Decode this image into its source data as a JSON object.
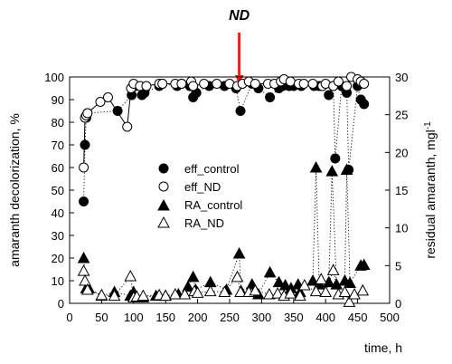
{
  "chart_data": {
    "type": "scatter",
    "annotation": {
      "text": "ND",
      "x": 265
    },
    "xlabel": "time, h",
    "ylabel_left": "amaranth decolorization, %",
    "ylabel_right": "residual amaranth, mgl",
    "ylabel_right_sup": "-1",
    "xlim": [
      0,
      500
    ],
    "ylim_left": [
      0,
      100
    ],
    "ylim_right": [
      0,
      30
    ],
    "x_ticks": [
      0,
      50,
      100,
      150,
      200,
      250,
      300,
      350,
      400,
      450,
      500
    ],
    "y_left_ticks": [
      0,
      10,
      20,
      30,
      40,
      50,
      60,
      70,
      80,
      90,
      100
    ],
    "y_right_ticks": [
      0,
      5,
      10,
      15,
      20,
      25,
      30
    ],
    "legend_position": "center",
    "grid": false,
    "series": [
      {
        "name": "eff_control",
        "axis": "left",
        "marker": "circle",
        "filled": true,
        "connector": "dotted",
        "points": [
          [
            22,
            45
          ],
          [
            24,
            70
          ],
          [
            26,
            82
          ],
          [
            28,
            84
          ],
          [
            75,
            85
          ],
          [
            97,
            92
          ],
          [
            103,
            96
          ],
          [
            113,
            92
          ],
          [
            117,
            93
          ],
          [
            140,
            96
          ],
          [
            145,
            97
          ],
          [
            168,
            96
          ],
          [
            175,
            97
          ],
          [
            188,
            96
          ],
          [
            193,
            91
          ],
          [
            198,
            93
          ],
          [
            218,
            96
          ],
          [
            242,
            96
          ],
          [
            260,
            95
          ],
          [
            267,
            85
          ],
          [
            285,
            97
          ],
          [
            295,
            95
          ],
          [
            313,
            91
          ],
          [
            327,
            95
          ],
          [
            333,
            96
          ],
          [
            343,
            96
          ],
          [
            350,
            96
          ],
          [
            362,
            96
          ],
          [
            382,
            96
          ],
          [
            390,
            96
          ],
          [
            405,
            92
          ],
          [
            412,
            96
          ],
          [
            415,
            64
          ],
          [
            425,
            96
          ],
          [
            433,
            93
          ],
          [
            436,
            59
          ],
          [
            450,
            96
          ],
          [
            455,
            90
          ],
          [
            460,
            88
          ]
        ]
      },
      {
        "name": "eff_ND",
        "axis": "left",
        "marker": "circle",
        "filled": false,
        "connector": "solid",
        "points": [
          [
            22,
            60
          ],
          [
            24,
            82
          ],
          [
            26,
            83
          ],
          [
            28,
            84
          ],
          [
            48,
            89
          ],
          [
            60,
            91
          ],
          [
            90,
            78
          ],
          [
            96,
            95
          ],
          [
            100,
            97
          ],
          [
            110,
            96
          ],
          [
            120,
            96
          ],
          [
            140,
            97
          ],
          [
            145,
            97
          ],
          [
            165,
            97
          ],
          [
            175,
            97
          ],
          [
            190,
            98
          ],
          [
            193,
            96
          ],
          [
            210,
            97
          ],
          [
            230,
            97
          ],
          [
            250,
            97
          ],
          [
            262,
            96
          ],
          [
            270,
            97
          ],
          [
            280,
            98
          ],
          [
            290,
            97
          ],
          [
            310,
            97
          ],
          [
            320,
            97
          ],
          [
            330,
            98
          ],
          [
            335,
            99
          ],
          [
            345,
            98
          ],
          [
            358,
            97
          ],
          [
            366,
            97
          ],
          [
            380,
            97
          ],
          [
            395,
            96
          ],
          [
            400,
            97
          ],
          [
            412,
            96
          ],
          [
            420,
            98
          ],
          [
            433,
            96
          ],
          [
            440,
            100
          ],
          [
            450,
            99
          ],
          [
            455,
            98
          ],
          [
            460,
            97
          ]
        ]
      },
      {
        "name": "RA_control",
        "axis": "right",
        "marker": "triangle",
        "filled": true,
        "connector": "dotted",
        "points": [
          [
            22,
            6
          ],
          [
            26,
            2
          ],
          [
            30,
            2
          ],
          [
            50,
            1
          ],
          [
            70,
            1.5
          ],
          [
            95,
            1
          ],
          [
            100,
            1.5
          ],
          [
            105,
            0.8
          ],
          [
            115,
            0.8
          ],
          [
            135,
            1
          ],
          [
            150,
            1
          ],
          [
            170,
            1.2
          ],
          [
            185,
            2.2
          ],
          [
            193,
            3.5
          ],
          [
            197,
            1.8
          ],
          [
            220,
            2.8
          ],
          [
            245,
            1.8
          ],
          [
            265,
            6.6
          ],
          [
            268,
            1.6
          ],
          [
            285,
            2.5
          ],
          [
            295,
            1.2
          ],
          [
            313,
            4.1
          ],
          [
            327,
            2.8
          ],
          [
            337,
            2.4
          ],
          [
            346,
            2
          ],
          [
            357,
            2.5
          ],
          [
            360,
            1.5
          ],
          [
            380,
            3
          ],
          [
            385,
            18
          ],
          [
            390,
            2.5
          ],
          [
            405,
            2.8
          ],
          [
            410,
            17.5
          ],
          [
            417,
            2.5
          ],
          [
            430,
            3
          ],
          [
            433,
            17.7
          ],
          [
            438,
            2.7
          ],
          [
            455,
            5
          ],
          [
            460,
            5.1
          ]
        ]
      },
      {
        "name": "RA_ND",
        "axis": "right",
        "marker": "triangle",
        "filled": false,
        "connector": "dotted",
        "points": [
          [
            22,
            4.3
          ],
          [
            24,
            3
          ],
          [
            28,
            1.8
          ],
          [
            50,
            1.1
          ],
          [
            70,
            1
          ],
          [
            95,
            3.6
          ],
          [
            100,
            0.8
          ],
          [
            105,
            0.9
          ],
          [
            115,
            1
          ],
          [
            140,
            1.1
          ],
          [
            150,
            1
          ],
          [
            165,
            1.2
          ],
          [
            180,
            1.2
          ],
          [
            195,
            1.6
          ],
          [
            200,
            1.4
          ],
          [
            220,
            1.6
          ],
          [
            242,
            1.5
          ],
          [
            262,
            3.5
          ],
          [
            267,
            1.5
          ],
          [
            280,
            1.5
          ],
          [
            290,
            1.7
          ],
          [
            312,
            1.2
          ],
          [
            325,
            1.3
          ],
          [
            335,
            1
          ],
          [
            345,
            1.3
          ],
          [
            360,
            1
          ],
          [
            367,
            2.4
          ],
          [
            385,
            1.6
          ],
          [
            393,
            3.2
          ],
          [
            400,
            1.5
          ],
          [
            412,
            4.4
          ],
          [
            420,
            1.2
          ],
          [
            430,
            1.5
          ],
          [
            437,
            0.2
          ],
          [
            445,
            1.2
          ],
          [
            458,
            1.7
          ]
        ]
      }
    ]
  }
}
